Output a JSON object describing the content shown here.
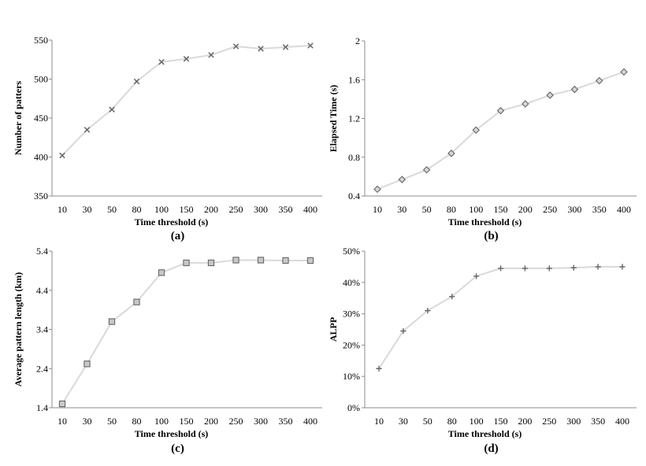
{
  "chart_data": [
    {
      "type": "line",
      "panel": "(a)",
      "xlabel": "Time threshold (s)",
      "ylabel": "Number of patters",
      "categories": [
        "10",
        "30",
        "50",
        "80",
        "100",
        "150",
        "200",
        "250",
        "300",
        "350",
        "400"
      ],
      "values": [
        402,
        435,
        461,
        497,
        522,
        526,
        531,
        542,
        539,
        541,
        543
      ],
      "ylim": [
        350,
        550
      ],
      "yticks": [
        350,
        400,
        450,
        500,
        550
      ],
      "ytick_labels": [
        "350",
        "400",
        "450",
        "500",
        "550"
      ],
      "marker": "x",
      "line_color": "#d9d9d9",
      "marker_color": "#666666",
      "grid": false
    },
    {
      "type": "line",
      "panel": "(b)",
      "xlabel": "Time threshold (s)",
      "ylabel": "Elapsed Time (s)",
      "categories": [
        "10",
        "30",
        "50",
        "80",
        "100",
        "150",
        "200",
        "250",
        "300",
        "350",
        "400"
      ],
      "values": [
        0.47,
        0.57,
        0.67,
        0.84,
        1.08,
        1.28,
        1.35,
        1.44,
        1.5,
        1.59,
        1.68
      ],
      "ylim": [
        0.4,
        2
      ],
      "yticks": [
        0.4,
        0.8,
        1.2,
        1.6,
        2
      ],
      "ytick_labels": [
        "0.4",
        "0.8",
        "1.2",
        "1.6",
        "2"
      ],
      "marker": "diamond",
      "line_color": "#d9d9d9",
      "marker_color": "#666666",
      "grid": false
    },
    {
      "type": "line",
      "panel": "(c)",
      "xlabel": "Time threshold (s)",
      "ylabel": "Average pattern length (km)",
      "categories": [
        "10",
        "30",
        "50",
        "80",
        "100",
        "150",
        "200",
        "250",
        "300",
        "350",
        "400"
      ],
      "values": [
        1.5,
        2.52,
        3.6,
        4.1,
        4.85,
        5.1,
        5.1,
        5.17,
        5.17,
        5.16,
        5.16
      ],
      "ylim": [
        1.4,
        5.4
      ],
      "yticks": [
        1.4,
        2.4,
        3.4,
        4.4,
        5.4
      ],
      "ytick_labels": [
        "1.4",
        "2.4",
        "3.4",
        "4.4",
        "5.4"
      ],
      "marker": "square",
      "line_color": "#d9d9d9",
      "marker_color": "#666666",
      "grid": false
    },
    {
      "type": "line",
      "panel": "(d)",
      "xlabel": "Time threshold (s)",
      "ylabel": "ALPP",
      "categories": [
        "10",
        "30",
        "50",
        "80",
        "100",
        "150",
        "200",
        "250",
        "300",
        "350",
        "400"
      ],
      "values": [
        12.5,
        24.5,
        31,
        35.5,
        42,
        44.5,
        44.5,
        44.5,
        44.7,
        45,
        45
      ],
      "ylim": [
        0,
        50
      ],
      "yticks": [
        0,
        10,
        20,
        30,
        40,
        50
      ],
      "ytick_labels": [
        "0%",
        "10%",
        "20%",
        "30%",
        "40%",
        "50%"
      ],
      "marker": "plus",
      "line_color": "#d9d9d9",
      "marker_color": "#666666",
      "grid": false
    }
  ]
}
